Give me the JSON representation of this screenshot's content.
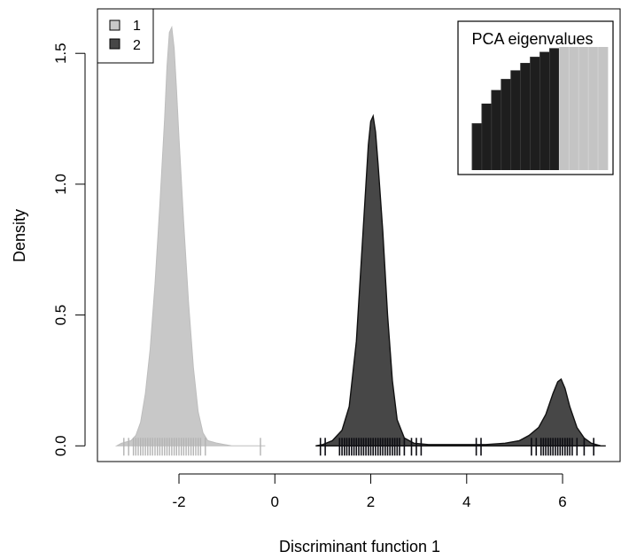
{
  "chart_data": {
    "type": "area",
    "xlabel": "Discriminant function 1",
    "ylabel": "Density",
    "xlim": [
      -3.7,
      7.2
    ],
    "ylim": [
      -0.06,
      1.67
    ],
    "x_ticks": [
      -2,
      0,
      2,
      4,
      6
    ],
    "x_tick_labels": [
      "-2",
      "0",
      "2",
      "4",
      "6"
    ],
    "y_ticks": [
      0.0,
      0.5,
      1.0,
      1.5
    ],
    "y_tick_labels": [
      "0.0",
      "0.5",
      "1.0",
      "1.5"
    ],
    "legend": {
      "position": "top-left",
      "entries": [
        {
          "label": "1",
          "color": "#c8c8c8"
        },
        {
          "label": "2",
          "color": "#474747"
        }
      ]
    },
    "series": [
      {
        "label": "1",
        "color": "#c8c8c8",
        "points": [
          [
            -3.3,
            0.0
          ],
          [
            -3.2,
            0.01
          ],
          [
            -3.0,
            0.02
          ],
          [
            -2.9,
            0.04
          ],
          [
            -2.8,
            0.09
          ],
          [
            -2.7,
            0.2
          ],
          [
            -2.6,
            0.37
          ],
          [
            -2.5,
            0.62
          ],
          [
            -2.4,
            0.92
          ],
          [
            -2.3,
            1.25
          ],
          [
            -2.25,
            1.45
          ],
          [
            -2.2,
            1.58
          ],
          [
            -2.15,
            1.6
          ],
          [
            -2.1,
            1.52
          ],
          [
            -2.05,
            1.36
          ],
          [
            -2.0,
            1.18
          ],
          [
            -1.9,
            0.85
          ],
          [
            -1.8,
            0.55
          ],
          [
            -1.7,
            0.3
          ],
          [
            -1.6,
            0.13
          ],
          [
            -1.5,
            0.05
          ],
          [
            -1.4,
            0.02
          ],
          [
            -1.2,
            0.01
          ],
          [
            -0.9,
            0.0
          ],
          [
            -0.6,
            0.0
          ],
          [
            -0.4,
            0.0
          ],
          [
            -0.2,
            0.0
          ]
        ],
        "rug": [
          -3.15,
          -3.05,
          -2.95,
          -2.9,
          -2.85,
          -2.8,
          -2.75,
          -2.7,
          -2.65,
          -2.6,
          -2.55,
          -2.5,
          -2.45,
          -2.4,
          -2.35,
          -2.3,
          -2.25,
          -2.2,
          -2.15,
          -2.1,
          -2.05,
          -2.0,
          -1.95,
          -1.9,
          -1.85,
          -1.8,
          -1.75,
          -1.7,
          -1.65,
          -1.6,
          -1.55,
          -1.45,
          -0.3
        ]
      },
      {
        "label": "2",
        "color": "#474747",
        "points": [
          [
            0.85,
            0.0
          ],
          [
            1.0,
            0.005
          ],
          [
            1.2,
            0.02
          ],
          [
            1.4,
            0.06
          ],
          [
            1.55,
            0.15
          ],
          [
            1.7,
            0.4
          ],
          [
            1.8,
            0.7
          ],
          [
            1.9,
            1.0
          ],
          [
            1.95,
            1.15
          ],
          [
            2.0,
            1.24
          ],
          [
            2.05,
            1.26
          ],
          [
            2.1,
            1.2
          ],
          [
            2.15,
            1.08
          ],
          [
            2.25,
            0.82
          ],
          [
            2.35,
            0.5
          ],
          [
            2.45,
            0.25
          ],
          [
            2.55,
            0.1
          ],
          [
            2.7,
            0.03
          ],
          [
            2.9,
            0.01
          ],
          [
            3.2,
            0.005
          ],
          [
            3.6,
            0.005
          ],
          [
            4.0,
            0.005
          ],
          [
            4.4,
            0.005
          ],
          [
            4.8,
            0.01
          ],
          [
            5.1,
            0.02
          ],
          [
            5.3,
            0.04
          ],
          [
            5.5,
            0.07
          ],
          [
            5.65,
            0.12
          ],
          [
            5.8,
            0.2
          ],
          [
            5.9,
            0.245
          ],
          [
            5.97,
            0.255
          ],
          [
            6.05,
            0.22
          ],
          [
            6.15,
            0.15
          ],
          [
            6.3,
            0.07
          ],
          [
            6.45,
            0.03
          ],
          [
            6.6,
            0.01
          ],
          [
            6.8,
            0.0
          ],
          [
            6.9,
            0.0
          ]
        ],
        "rug": [
          0.95,
          1.05,
          1.35,
          1.4,
          1.45,
          1.5,
          1.55,
          1.6,
          1.65,
          1.7,
          1.75,
          1.8,
          1.85,
          1.9,
          1.95,
          2.0,
          2.05,
          2.1,
          2.15,
          2.2,
          2.25,
          2.3,
          2.35,
          2.4,
          2.45,
          2.5,
          2.55,
          2.6,
          2.7,
          2.85,
          2.95,
          3.05,
          4.2,
          4.3,
          5.35,
          5.45,
          5.55,
          5.6,
          5.65,
          5.7,
          5.75,
          5.8,
          5.85,
          5.9,
          5.95,
          6.0,
          6.05,
          6.1,
          6.15,
          6.2,
          6.3,
          6.45,
          6.65
        ]
      }
    ],
    "inset": {
      "title": "PCA eigenvalues",
      "position": "top-right",
      "n_bars": 15,
      "n_retained": 10,
      "retained_color": "#1e1e1e",
      "discarded_color": "#c4c4c4",
      "values": [
        0.0,
        0.38,
        0.54,
        0.65,
        0.74,
        0.81,
        0.87,
        0.92,
        0.96,
        0.99,
        1.0,
        1.0,
        1.0,
        1.0,
        1.0
      ]
    }
  }
}
